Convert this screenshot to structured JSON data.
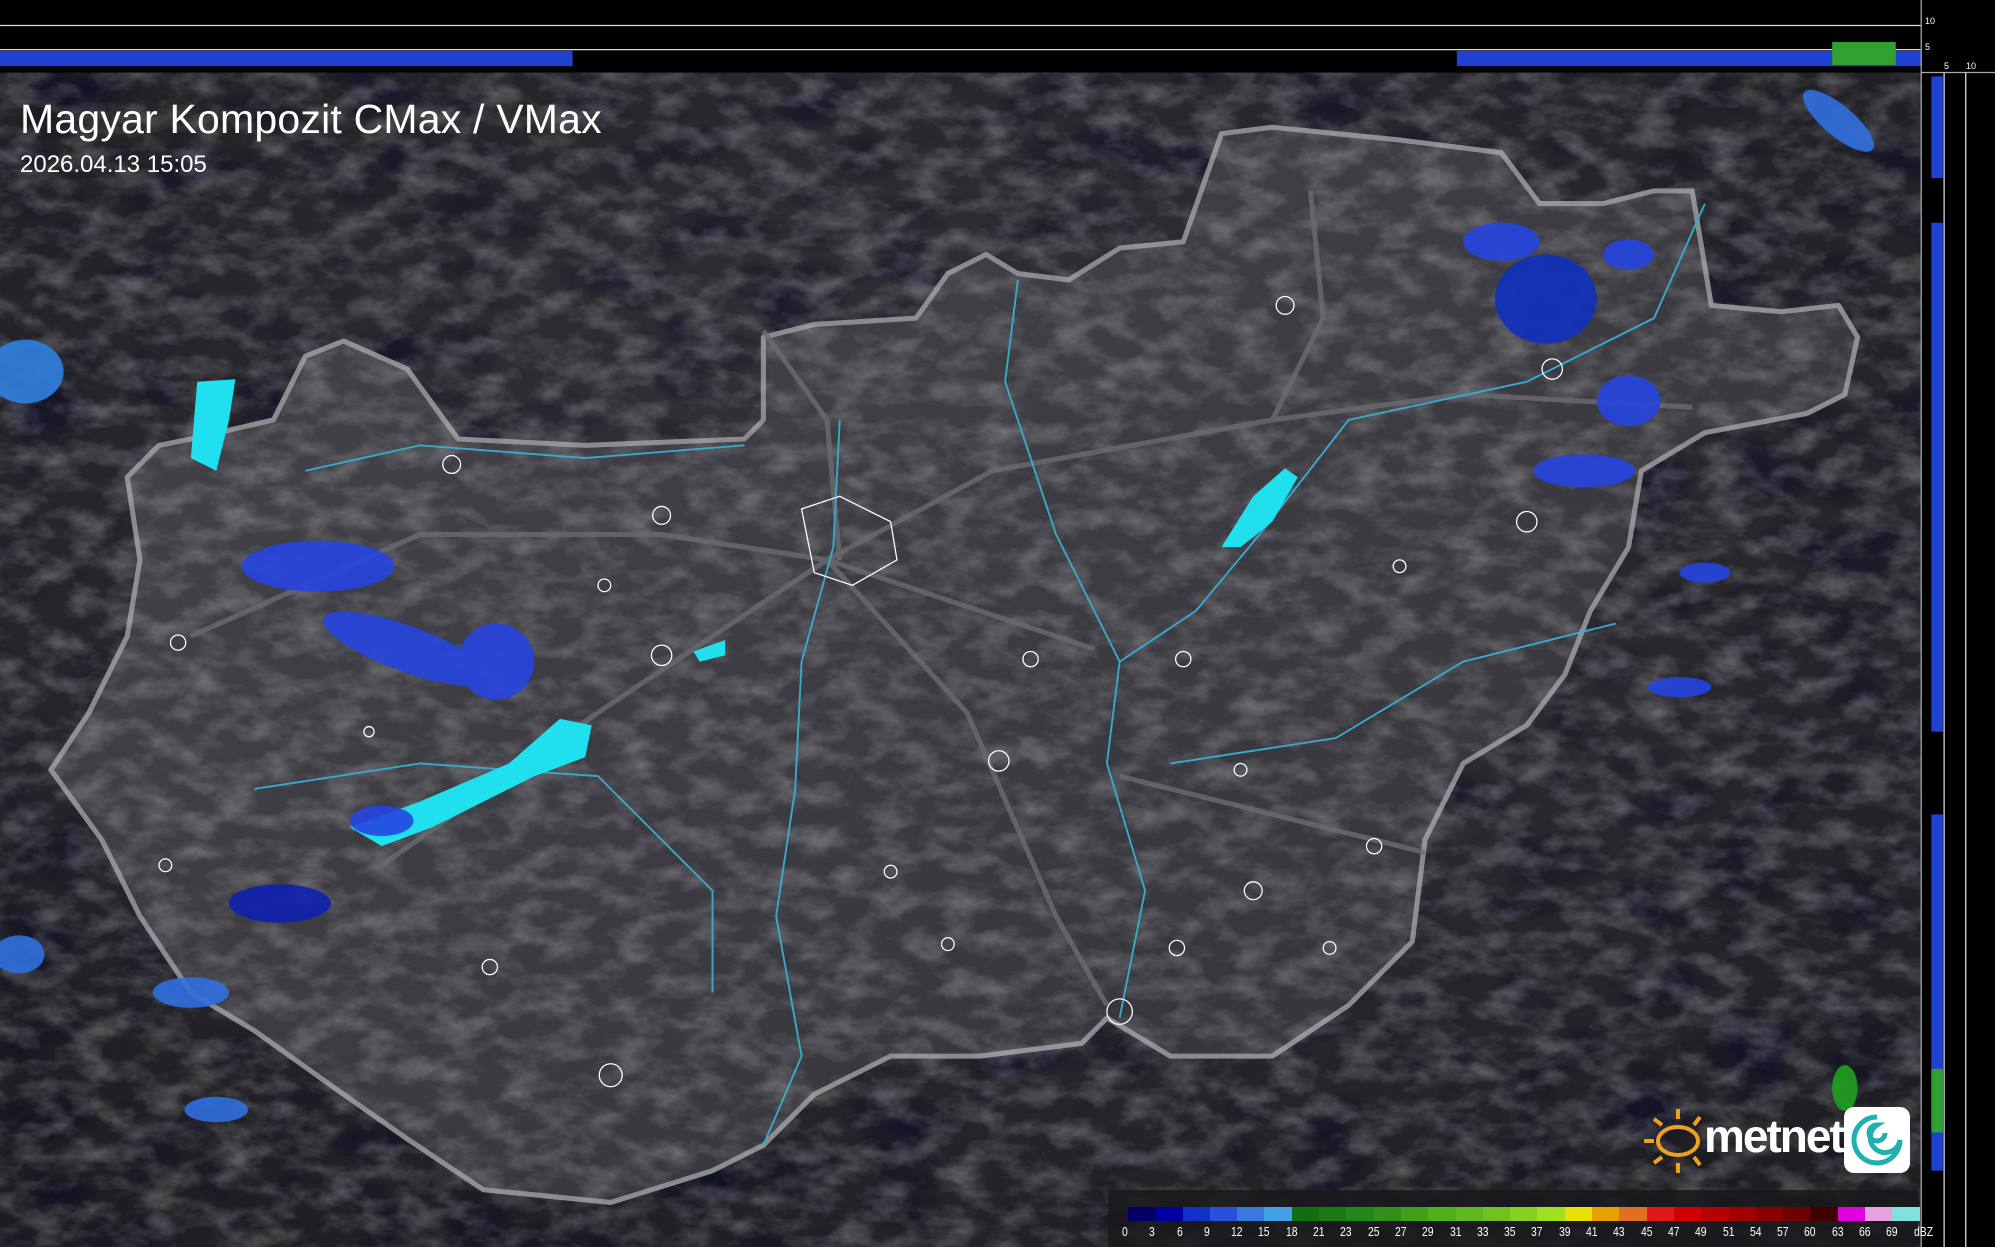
{
  "header": {
    "title": "Magyar Kompozit CMax / VMax",
    "timestamp": "2026.04.13 15:05"
  },
  "side_profiles": {
    "top_scale_labels": [
      "10",
      "5"
    ],
    "right_scale_labels": [
      "5",
      "10"
    ]
  },
  "legend": {
    "unit": "dBZ",
    "labels": [
      "0",
      "3",
      "6",
      "9",
      "12",
      "15",
      "18",
      "21",
      "23",
      "25",
      "27",
      "29",
      "31",
      "33",
      "35",
      "37",
      "39",
      "41",
      "43",
      "45",
      "47",
      "49",
      "51",
      "54",
      "57",
      "60",
      "63",
      "66",
      "69"
    ],
    "colors": [
      "#000066",
      "#0000a0",
      "#1030c8",
      "#2850d8",
      "#3878e0",
      "#40a0e8",
      "#107010",
      "#1a7a10",
      "#208818",
      "#309018",
      "#40a018",
      "#50b018",
      "#60b820",
      "#70c020",
      "#88d020",
      "#a0e020",
      "#e8e000",
      "#e8a000",
      "#e07020",
      "#e01818",
      "#d00000",
      "#b80000",
      "#a00000",
      "#880000",
      "#700000",
      "#400000",
      "#e000e0",
      "#e8a0e0",
      "#80e0e0"
    ]
  },
  "logo": {
    "text": "metnet",
    "icon": "sun-icon"
  },
  "colors": {
    "background": "#2a2a2e",
    "country_fill": "#3a3a3f",
    "border": "#8a8a8e",
    "rivers": "#3aa8c8",
    "lakes": "#20e0f0",
    "precip_light": "#2040e0"
  }
}
